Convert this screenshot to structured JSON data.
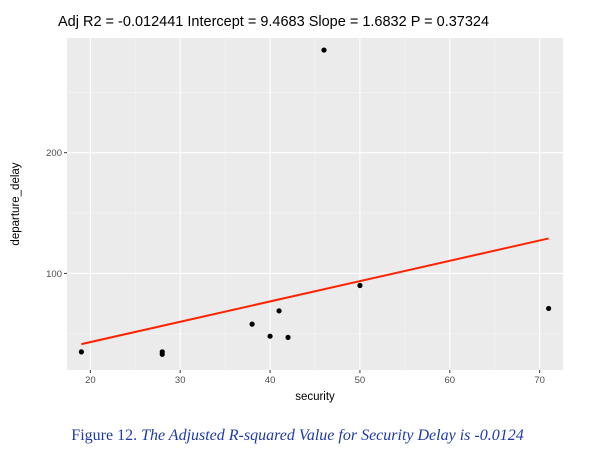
{
  "chart_data": {
    "type": "scatter",
    "title": "Adj R2 =  -0.012441 Intercept = 9.4683  Slope = 1.6832  P = 0.37324",
    "xlabel": "security",
    "ylabel": "departure_delay",
    "xlim": [
      17.4,
      72.6
    ],
    "ylim": [
      20,
      295
    ],
    "x_ticks": [
      20,
      30,
      40,
      50,
      60,
      70
    ],
    "y_ticks": [
      100,
      200
    ],
    "grid": true,
    "points": [
      {
        "x": 19,
        "y": 35
      },
      {
        "x": 28,
        "y": 33
      },
      {
        "x": 28,
        "y": 35
      },
      {
        "x": 38,
        "y": 58
      },
      {
        "x": 40,
        "y": 48
      },
      {
        "x": 41,
        "y": 69
      },
      {
        "x": 42,
        "y": 47
      },
      {
        "x": 46,
        "y": 285
      },
      {
        "x": 50,
        "y": 90
      },
      {
        "x": 71,
        "y": 71
      }
    ],
    "fit_line": {
      "intercept": 9.4683,
      "slope": 1.6832,
      "x_range": [
        19,
        71
      ],
      "color": "#ff2200"
    },
    "point_color": "#000000",
    "panel_color": "#ebebeb"
  },
  "caption": {
    "figure_number": "Figure 12.",
    "text": "The Adjusted R-squared Value for Security Delay is -0.0124"
  }
}
